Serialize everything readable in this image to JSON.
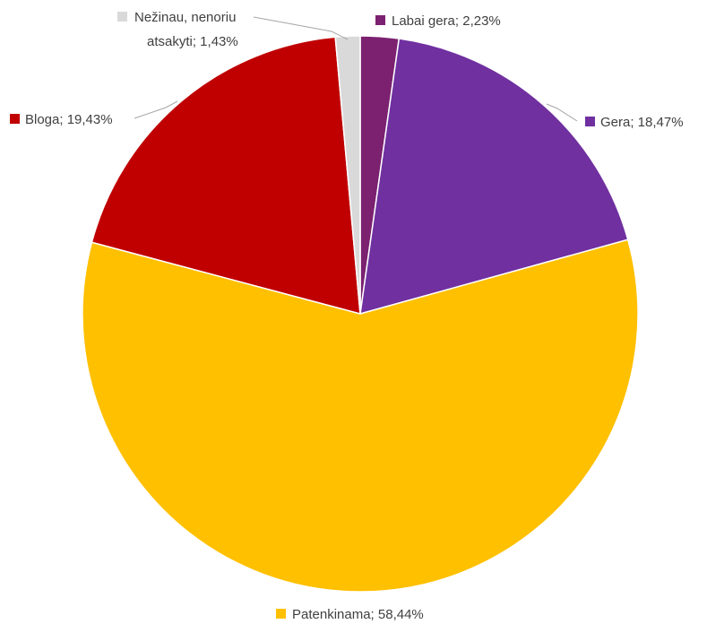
{
  "chart_data": {
    "type": "pie",
    "title": "",
    "start": "top",
    "direction": "clockwise",
    "slices": [
      {
        "label": "Labai gera",
        "value": 2.23,
        "display": "Labai gera; 2,23%",
        "color": "#7b2170"
      },
      {
        "label": "Gera",
        "value": 18.47,
        "display": "Gera; 18,47%",
        "color": "#7030a0"
      },
      {
        "label": "Patenkinama",
        "value": 58.44,
        "display": "Patenkinama; 58,44%",
        "color": "#ffc000"
      },
      {
        "label": "Bloga",
        "value": 19.43,
        "display": "Bloga; 19,43%",
        "color": "#c00000"
      },
      {
        "label": "Nežinau, nenoriu atsakyti",
        "value": 1.43,
        "display_lines": [
          "Nežinau, nenoriu",
          "atsakyti; 1,43%"
        ],
        "color": "#d9d9d9"
      }
    ]
  }
}
